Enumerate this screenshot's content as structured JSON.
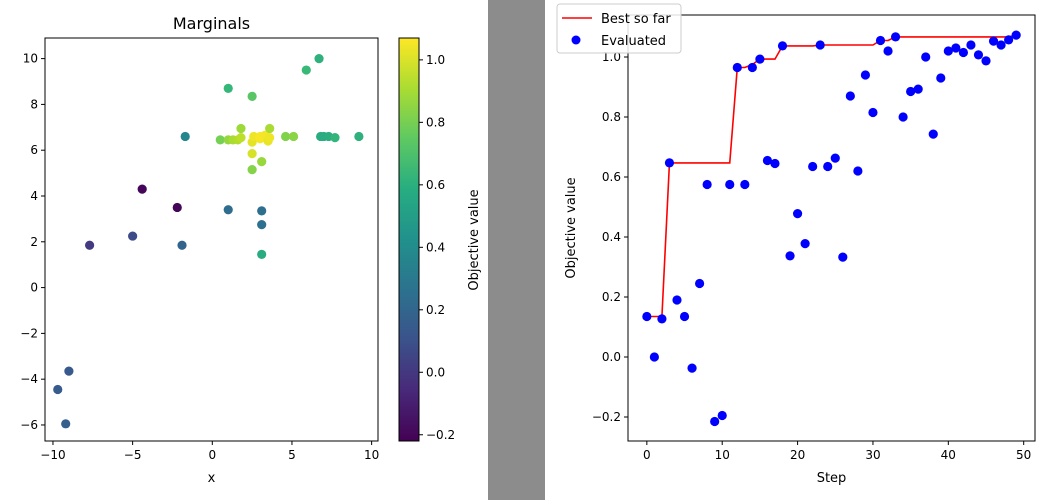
{
  "chart_data": [
    {
      "type": "scatter",
      "title": "Marginals",
      "xlabel": "x",
      "ylabel": "",
      "xlim": [
        -10.5,
        10.4
      ],
      "ylim": [
        -6.7,
        10.9
      ],
      "xticks": [
        -10,
        -5,
        0,
        5,
        10
      ],
      "yticks": [
        -6,
        -4,
        -2,
        0,
        2,
        4,
        6,
        8,
        10
      ],
      "colormap": "viridis",
      "colorbar": {
        "label": "Objective value",
        "min": -0.22,
        "max": 1.07,
        "ticks": [
          -0.2,
          0.0,
          0.2,
          0.4,
          0.6,
          0.8,
          1.0
        ]
      },
      "points": [
        {
          "x": -9.7,
          "y": -4.45,
          "value": 0.15
        },
        {
          "x": -9.0,
          "y": -3.65,
          "value": 0.14
        },
        {
          "x": -9.2,
          "y": -5.95,
          "value": 0.17
        },
        {
          "x": -7.7,
          "y": 1.85,
          "value": 0.0
        },
        {
          "x": -5.0,
          "y": 2.25,
          "value": 0.08
        },
        {
          "x": -4.4,
          "y": 4.3,
          "value": -0.2
        },
        {
          "x": -2.2,
          "y": 3.5,
          "value": -0.2
        },
        {
          "x": -1.9,
          "y": 1.85,
          "value": 0.19
        },
        {
          "x": -1.7,
          "y": 6.6,
          "value": 0.38
        },
        {
          "x": 1.0,
          "y": 3.4,
          "value": 0.24
        },
        {
          "x": 1.0,
          "y": 8.7,
          "value": 0.64
        },
        {
          "x": 2.5,
          "y": 8.35,
          "value": 0.73
        },
        {
          "x": 3.1,
          "y": 3.35,
          "value": 0.25
        },
        {
          "x": 3.1,
          "y": 2.75,
          "value": 0.26
        },
        {
          "x": 3.1,
          "y": 1.45,
          "value": 0.57
        },
        {
          "x": 5.9,
          "y": 9.5,
          "value": 0.65
        },
        {
          "x": 6.7,
          "y": 10.0,
          "value": 0.6
        },
        {
          "x": 6.8,
          "y": 6.6,
          "value": 0.57
        },
        {
          "x": 7.0,
          "y": 6.6,
          "value": 0.57
        },
        {
          "x": 7.3,
          "y": 6.6,
          "value": 0.58
        },
        {
          "x": 7.7,
          "y": 6.55,
          "value": 0.62
        },
        {
          "x": 9.2,
          "y": 6.6,
          "value": 0.6
        },
        {
          "x": 4.6,
          "y": 6.6,
          "value": 0.82
        },
        {
          "x": 5.1,
          "y": 6.6,
          "value": 0.84
        },
        {
          "x": 0.5,
          "y": 6.45,
          "value": 0.8
        },
        {
          "x": 1.0,
          "y": 6.45,
          "value": 0.86
        },
        {
          "x": 1.3,
          "y": 6.45,
          "value": 0.9
        },
        {
          "x": 1.6,
          "y": 6.45,
          "value": 0.92
        },
        {
          "x": 1.8,
          "y": 6.55,
          "value": 0.94
        },
        {
          "x": 1.8,
          "y": 6.95,
          "value": 0.88
        },
        {
          "x": 2.5,
          "y": 6.35,
          "value": 1.02
        },
        {
          "x": 2.6,
          "y": 6.6,
          "value": 1.04
        },
        {
          "x": 3.0,
          "y": 6.5,
          "value": 1.05
        },
        {
          "x": 3.0,
          "y": 6.6,
          "value": 1.06
        },
        {
          "x": 3.3,
          "y": 6.65,
          "value": 1.05
        },
        {
          "x": 3.5,
          "y": 6.4,
          "value": 1.03
        },
        {
          "x": 3.6,
          "y": 6.55,
          "value": 1.04
        },
        {
          "x": 3.6,
          "y": 6.95,
          "value": 0.9
        },
        {
          "x": 2.5,
          "y": 5.85,
          "value": 0.99
        },
        {
          "x": 3.1,
          "y": 5.5,
          "value": 0.87
        },
        {
          "x": 2.5,
          "y": 5.15,
          "value": 0.83
        }
      ]
    },
    {
      "type": "line",
      "title": "",
      "xlabel": "Step",
      "ylabel": "Objective value",
      "xlim": [
        -2.5,
        51.5
      ],
      "ylim": [
        -0.28,
        1.14
      ],
      "xticks": [
        0,
        10,
        20,
        30,
        40,
        50
      ],
      "yticks": [
        -0.2,
        0.0,
        0.2,
        0.4,
        0.6,
        0.8,
        1.0
      ],
      "legend_position": "top-left",
      "series": [
        {
          "name": "Best so far",
          "kind": "line",
          "color": "#ff0000",
          "x": [
            0,
            1,
            2,
            3,
            4,
            5,
            6,
            7,
            8,
            9,
            10,
            11,
            12,
            13,
            14,
            15,
            16,
            17,
            18,
            19,
            20,
            21,
            22,
            23,
            24,
            25,
            26,
            27,
            28,
            29,
            30,
            31,
            32,
            33,
            34,
            35,
            36,
            37,
            38,
            39,
            40,
            41,
            42,
            43,
            44,
            45,
            46,
            47,
            48,
            49
          ],
          "y": [
            0.135,
            0.135,
            0.135,
            0.647,
            0.647,
            0.647,
            0.647,
            0.647,
            0.647,
            0.647,
            0.647,
            0.647,
            0.965,
            0.965,
            0.975,
            0.993,
            0.993,
            0.993,
            1.037,
            1.037,
            1.037,
            1.037,
            1.037,
            1.04,
            1.04,
            1.04,
            1.04,
            1.04,
            1.04,
            1.04,
            1.04,
            1.055,
            1.055,
            1.067,
            1.067,
            1.067,
            1.067,
            1.067,
            1.067,
            1.067,
            1.067,
            1.067,
            1.067,
            1.067,
            1.067,
            1.067,
            1.067,
            1.067,
            1.067,
            1.073
          ]
        },
        {
          "name": "Evaluated",
          "kind": "scatter",
          "color": "#0000ff",
          "x": [
            0,
            1,
            2,
            3,
            4,
            5,
            6,
            7,
            8,
            9,
            10,
            11,
            12,
            13,
            14,
            15,
            16,
            17,
            18,
            19,
            20,
            21,
            22,
            23,
            24,
            25,
            26,
            27,
            28,
            29,
            30,
            31,
            32,
            33,
            34,
            35,
            36,
            37,
            38,
            39,
            40,
            41,
            42,
            43,
            44,
            45,
            46,
            47,
            48,
            49
          ],
          "y": [
            0.135,
            0.0,
            0.127,
            0.647,
            0.19,
            0.135,
            -0.037,
            0.245,
            0.575,
            -0.215,
            -0.195,
            0.575,
            0.965,
            0.575,
            0.965,
            0.993,
            0.655,
            0.645,
            1.037,
            0.337,
            0.478,
            0.378,
            0.635,
            1.04,
            0.635,
            0.663,
            0.333,
            0.87,
            0.62,
            0.94,
            0.815,
            1.055,
            1.02,
            1.067,
            0.8,
            0.885,
            0.893,
            1.0,
            0.743,
            0.93,
            1.02,
            1.03,
            1.015,
            1.04,
            1.007,
            0.987,
            1.053,
            1.04,
            1.057,
            1.073
          ]
        }
      ]
    }
  ]
}
